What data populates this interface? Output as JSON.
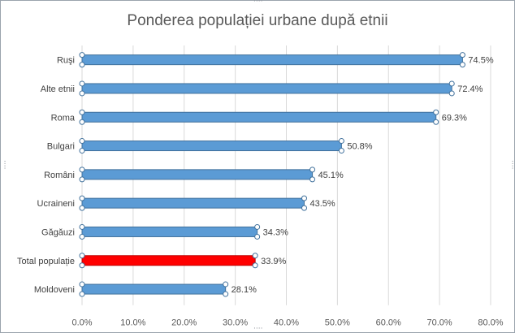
{
  "chart_data": {
    "type": "bar",
    "orientation": "horizontal",
    "title": "Ponderea populației urbane după etnii",
    "categories": [
      "Ruşi",
      "Alte etnii",
      "Roma",
      "Bulgari",
      "Români",
      "Ucraineni",
      "Găgăuzi",
      "Total populație",
      "Moldoveni"
    ],
    "series": [
      {
        "values": [
          74.5,
          72.4,
          69.3,
          50.8,
          45.1,
          43.5,
          34.3,
          33.9,
          28.1
        ]
      }
    ],
    "data_labels": [
      "74.5%",
      "72.4%",
      "69.3%",
      "50.8%",
      "45.1%",
      "43.5%",
      "34.3%",
      "33.9%",
      "28.1%"
    ],
    "xlim": [
      0,
      80
    ],
    "x_ticks": [
      "0.0%",
      "10.0%",
      "20.0%",
      "30.0%",
      "40.0%",
      "50.0%",
      "60.0%",
      "70.0%",
      "80.0%"
    ],
    "grid": "vertical",
    "bar_color": "#5b9bd5",
    "highlight_color": "#ff0000",
    "highlight_category": "Total populație",
    "selected": true
  }
}
